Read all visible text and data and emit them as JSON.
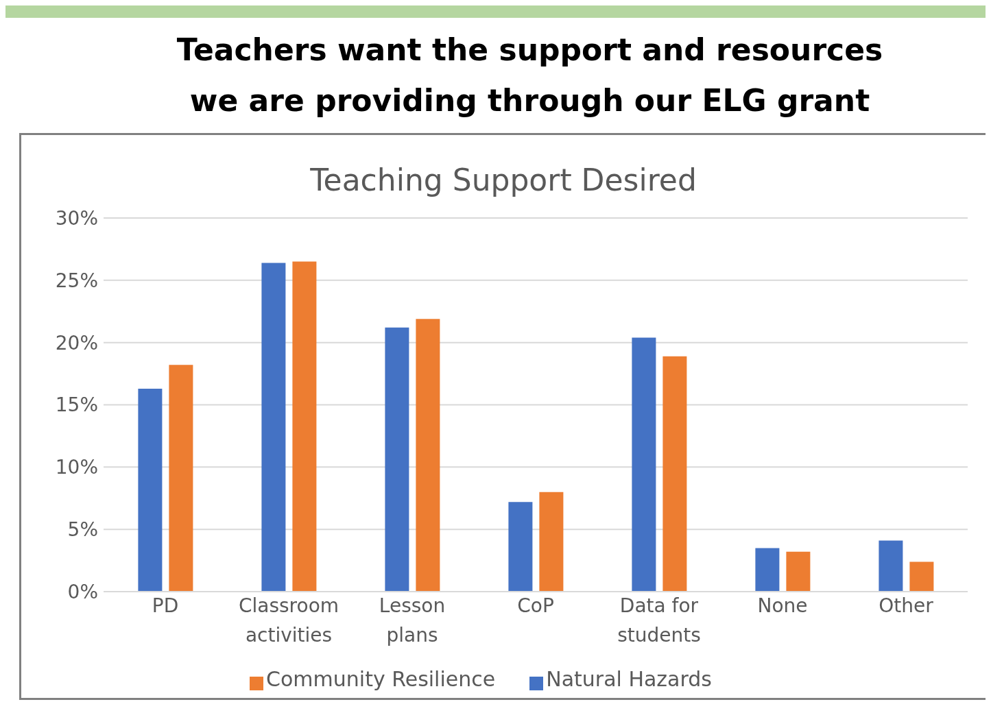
{
  "chart_data": {
    "type": "bar",
    "title": "Teachers want the support and resources we are providing through our ELG grant",
    "subtitle": "Teaching Support Desired",
    "categories": [
      "PD",
      "Classroom activities",
      "Lesson plans",
      "CoP",
      "Data for students",
      "None",
      "Other"
    ],
    "series": [
      {
        "name": "Natural Hazards",
        "color": "#4472c4",
        "values": [
          16.3,
          26.4,
          21.2,
          7.2,
          20.4,
          3.5,
          4.1
        ]
      },
      {
        "name": "Community Resilience",
        "color": "#ed7d31",
        "values": [
          18.2,
          26.5,
          21.9,
          8.0,
          18.9,
          3.2,
          2.4
        ]
      }
    ],
    "ylim": [
      0,
      30
    ],
    "yticks": [
      {
        "value": 0,
        "label": "0%"
      },
      {
        "value": 5,
        "label": "5%"
      },
      {
        "value": 10,
        "label": "10%"
      },
      {
        "value": 15,
        "label": "15%"
      },
      {
        "value": 20,
        "label": "20%"
      },
      {
        "value": 25,
        "label": "25%"
      },
      {
        "value": 30,
        "label": "30%"
      }
    ],
    "grid": "y",
    "legend": "bottom"
  }
}
